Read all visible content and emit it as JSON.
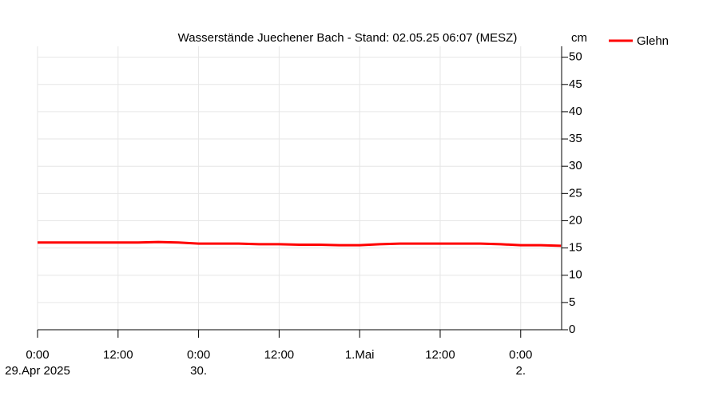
{
  "chart_data": {
    "type": "line",
    "title": "Wasserstände Juechener Bach - Stand: 02.05.25 06:07 (MESZ)",
    "y_label": "cm",
    "x": [
      0,
      3,
      6,
      9,
      12,
      15,
      18,
      21,
      24,
      27,
      30,
      33,
      36,
      39,
      42,
      45,
      48,
      51,
      54,
      57,
      60,
      63,
      66,
      69,
      72,
      75,
      78
    ],
    "series": [
      {
        "name": "Glehn",
        "color": "#ff0000",
        "values": [
          16.0,
          16.0,
          16.0,
          16.0,
          16.0,
          16.0,
          16.1,
          16.0,
          15.8,
          15.8,
          15.8,
          15.7,
          15.7,
          15.6,
          15.6,
          15.5,
          15.5,
          15.7,
          15.8,
          15.8,
          15.8,
          15.8,
          15.8,
          15.7,
          15.5,
          15.5,
          15.4
        ]
      }
    ],
    "xlim": [
      0,
      78.1
    ],
    "xticks": [
      {
        "value": 0,
        "label": "0:00",
        "sublabel": "29.Apr 2025"
      },
      {
        "value": 12,
        "label": "12:00"
      },
      {
        "value": 24,
        "label": "0:00",
        "sublabel": "30."
      },
      {
        "value": 36,
        "label": "12:00"
      },
      {
        "value": 48,
        "label": "1.Mai"
      },
      {
        "value": 60,
        "label": "12:00"
      },
      {
        "value": 72,
        "label": "0:00",
        "sublabel": "2."
      }
    ],
    "ylim": [
      0,
      52
    ],
    "yticks": [
      0,
      5,
      10,
      15,
      20,
      25,
      30,
      35,
      40,
      45,
      50
    ],
    "grid": true,
    "legend": "top-right"
  }
}
